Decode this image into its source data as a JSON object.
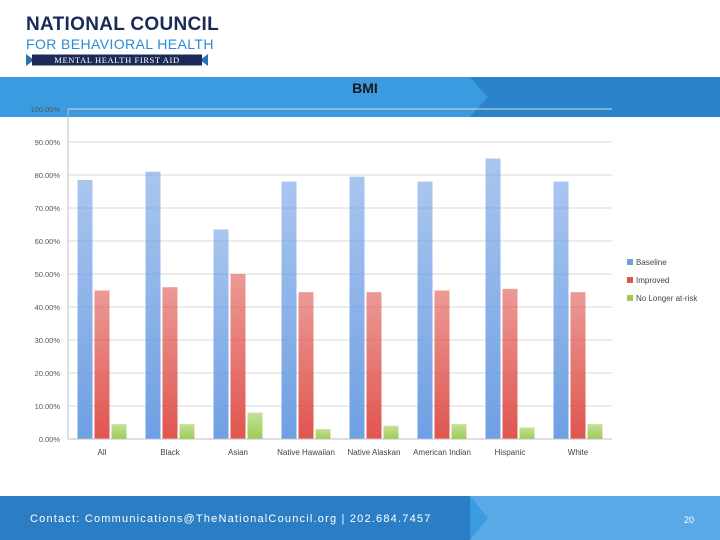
{
  "logo": {
    "line1": "NATIONAL COUNCIL",
    "line2": "FOR BEHAVIORAL HEALTH",
    "ribbon": "MENTAL HEALTH FIRST AID"
  },
  "colors": {
    "navy": "#1b2a57",
    "accent": "#2a8bd6",
    "banner_dark": "#2c7ec4",
    "banner_light": "#5aa9e6",
    "baseline": "#6f9fe3",
    "improved": "#e0554f",
    "no_longer": "#9ccc55"
  },
  "chart_data": {
    "type": "bar",
    "title": "BMI",
    "xlabel": "",
    "ylabel": "",
    "ylim": [
      0,
      100
    ],
    "yticks": [
      "0.00%",
      "10.00%",
      "20.00%",
      "30.00%",
      "40.00%",
      "50.00%",
      "60.00%",
      "70.00%",
      "80.00%",
      "90.00%",
      "100.00%"
    ],
    "categories": [
      "All",
      "Black",
      "Asian",
      "Native Hawaiian",
      "Native Alaskan",
      "American Indian",
      "Hispanic",
      "White"
    ],
    "series": [
      {
        "name": "Baseline",
        "values": [
          78.5,
          81,
          63.5,
          78,
          79.5,
          78,
          85,
          78
        ]
      },
      {
        "name": "Improved",
        "values": [
          45,
          46,
          50,
          44.5,
          44.5,
          45,
          45.5,
          44.5
        ]
      },
      {
        "name": "No Longer at-risk",
        "values": [
          4.5,
          4.5,
          8,
          3,
          4,
          4.5,
          3.5,
          4.5
        ]
      }
    ],
    "grid": true,
    "legend": "right"
  },
  "footer": {
    "contact": "Contact: Communications@TheNationalCouncil.org  |  202.684.7457",
    "page": "20"
  }
}
